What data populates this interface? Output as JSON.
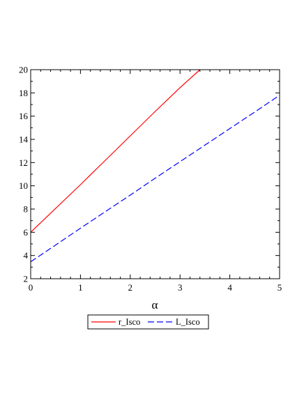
{
  "chart_data": {
    "type": "line",
    "xlabel": "α",
    "ylabel": "",
    "xlim": [
      0,
      5
    ],
    "ylim": [
      2,
      20
    ],
    "x_ticks": [
      0,
      1,
      2,
      3,
      4,
      5
    ],
    "y_ticks": [
      2,
      4,
      6,
      8,
      10,
      12,
      14,
      16,
      18,
      20
    ],
    "grid": false,
    "legend_position": "bottom",
    "series": [
      {
        "name": "r_Isco",
        "color": "#ff0000",
        "dash": "solid",
        "x": [
          0,
          0.5,
          1,
          1.5,
          2,
          2.5,
          3,
          3.4
        ],
        "y": [
          6.0,
          8.05,
          10.1,
          12.2,
          14.3,
          16.4,
          18.45,
          20.0
        ]
      },
      {
        "name": "L_Isco",
        "color": "#0000ff",
        "dash": "dashed",
        "x": [
          0,
          0.5,
          1,
          1.5,
          2,
          2.5,
          3,
          3.5,
          4,
          4.5,
          5
        ],
        "y": [
          3.46,
          4.9,
          6.35,
          7.78,
          9.2,
          10.65,
          12.08,
          13.5,
          14.93,
          16.35,
          17.8
        ]
      }
    ]
  }
}
